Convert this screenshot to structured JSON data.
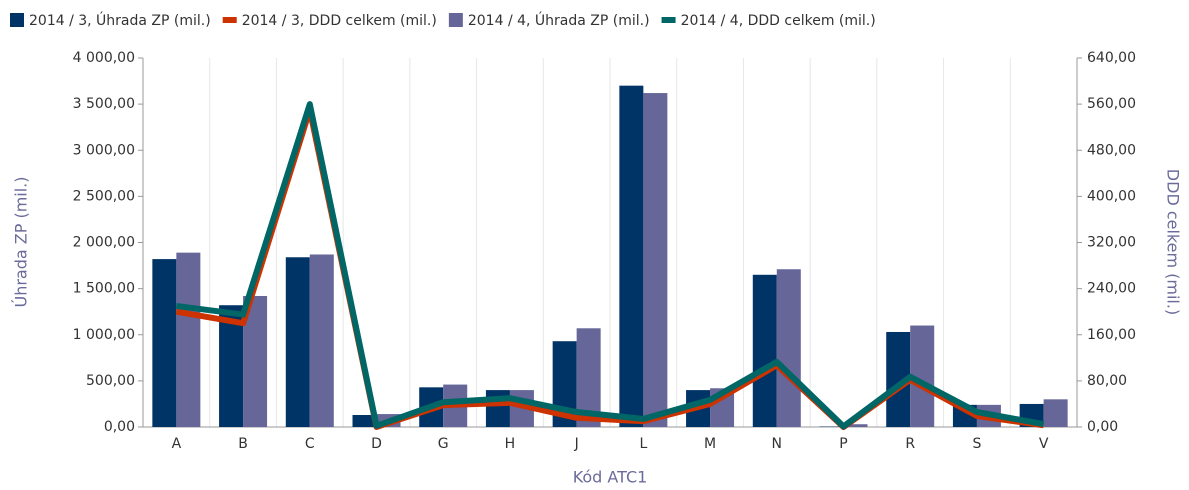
{
  "chart_data": {
    "type": "bar-line",
    "x_label": "Kód ATC1",
    "y_label": "Úhrada ZP (mil.)",
    "y2_label": "DDD celkem (mil.)",
    "categories": [
      "A",
      "B",
      "C",
      "D",
      "G",
      "H",
      "J",
      "L",
      "M",
      "N",
      "P",
      "R",
      "S",
      "V"
    ],
    "series": [
      {
        "name": "2014 / 3, Úhrada ZP (mil.)",
        "type": "bar",
        "color": "#003366",
        "values": [
          1820,
          1320,
          1840,
          130,
          430,
          400,
          930,
          3700,
          400,
          1650,
          5,
          1030,
          240,
          250
        ]
      },
      {
        "name": "2014 / 3, DDD celkem (mil.)",
        "type": "line",
        "axis": "y2",
        "color": "#cc3300",
        "values": [
          200,
          180,
          550,
          0,
          38,
          42,
          16,
          10,
          40,
          107,
          0,
          82,
          19,
          3
        ]
      },
      {
        "name": "2014 / 4, Úhrada ZP (mil.)",
        "type": "bar",
        "color": "#666699",
        "values": [
          1890,
          1420,
          1870,
          140,
          460,
          400,
          1070,
          3620,
          420,
          1710,
          30,
          1100,
          240,
          300
        ]
      },
      {
        "name": "2014 / 4, DDD celkem (mil.)",
        "type": "line",
        "axis": "y2",
        "color": "#006666",
        "values": [
          210,
          195,
          560,
          2,
          43,
          50,
          26,
          14,
          47,
          113,
          1,
          87,
          26,
          5
        ]
      }
    ],
    "ylim": [
      0,
      4000
    ],
    "yticks": [
      {
        "value": 0,
        "label": "0,00"
      },
      {
        "value": 500,
        "label": "500,00"
      },
      {
        "value": 1000,
        "label": "1 000,00"
      },
      {
        "value": 1500,
        "label": "1 500,00"
      },
      {
        "value": 2000,
        "label": "2 000,00"
      },
      {
        "value": 2500,
        "label": "2 500,00"
      },
      {
        "value": 3000,
        "label": "3 000,00"
      },
      {
        "value": 3500,
        "label": "3 500,00"
      },
      {
        "value": 4000,
        "label": "4 000,00"
      }
    ],
    "y2lim": [
      0,
      640
    ],
    "y2ticks": [
      {
        "value": 0,
        "label": "0,00"
      },
      {
        "value": 80,
        "label": "80,00"
      },
      {
        "value": 160,
        "label": "160,00"
      },
      {
        "value": 240,
        "label": "240,00"
      },
      {
        "value": 320,
        "label": "320,00"
      },
      {
        "value": 400,
        "label": "400,00"
      },
      {
        "value": 480,
        "label": "480,00"
      },
      {
        "value": 560,
        "label": "560,00"
      },
      {
        "value": 640,
        "label": "640,00"
      }
    ],
    "legend": "top"
  }
}
